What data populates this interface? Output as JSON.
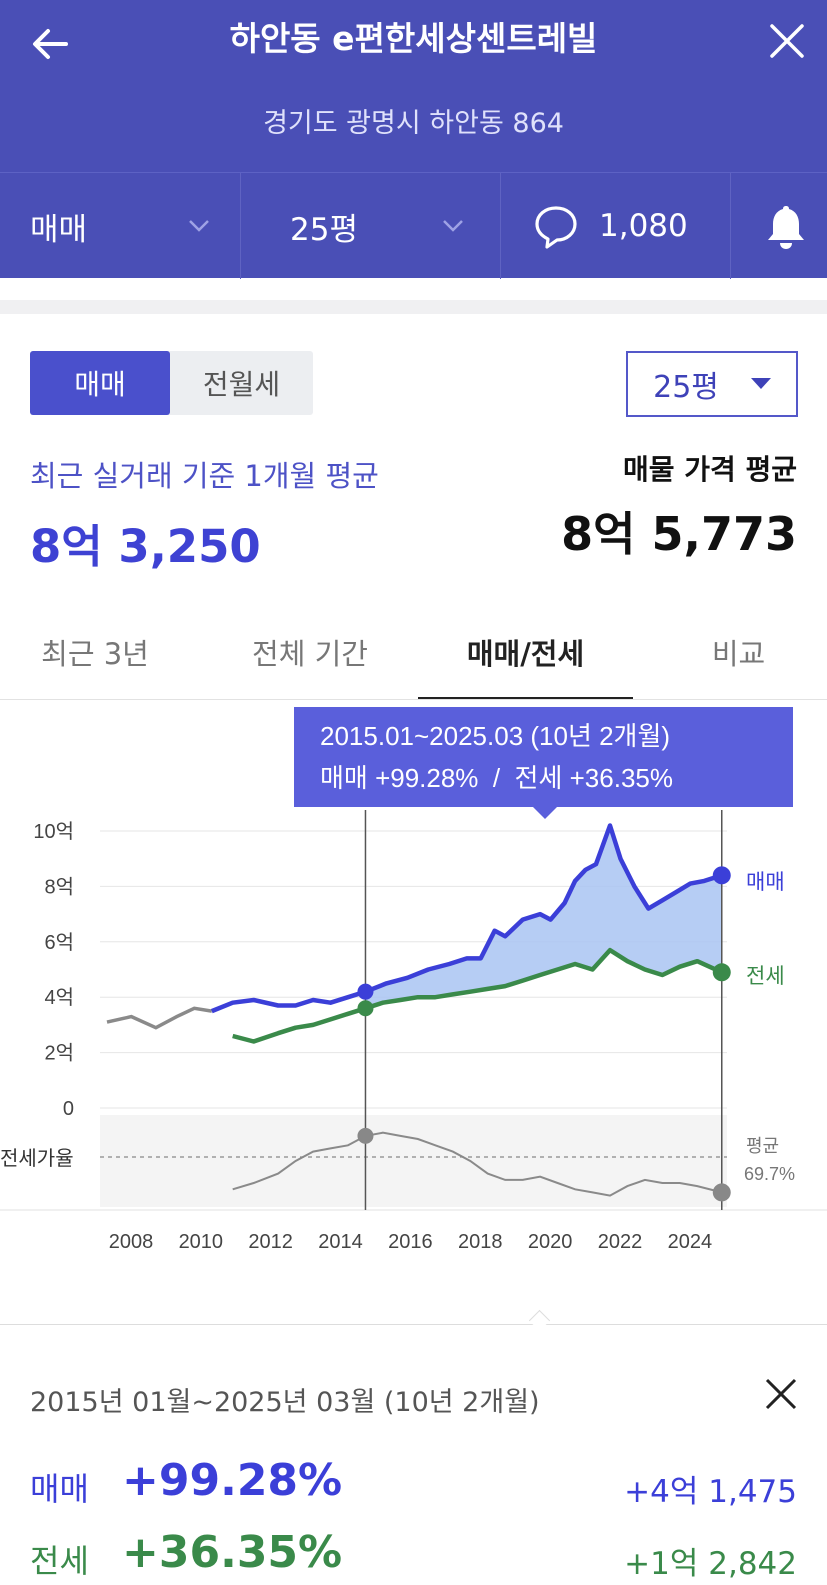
{
  "header": {
    "title": "하안동 e편한세상센트레빌",
    "address": "경기도 광명시 하안동 864"
  },
  "filter_bar": {
    "trade_type": "매매",
    "size": "25평",
    "comment_count": "1,080"
  },
  "segment": {
    "sale": "매매",
    "rent": "전월세"
  },
  "size_dropdown": "25평",
  "recent": {
    "label": "최근 실거래 기준 1개월 평균",
    "value": "8억 3,250"
  },
  "listing": {
    "label": "매물 가격 평균",
    "value": "8억 5,773"
  },
  "tabs": [
    "최근 3년",
    "전체 기간",
    "매매/전세",
    "비교"
  ],
  "active_tab": "매매/전세",
  "tooltip": {
    "period": "2015.01~2025.03 (10년 2개월)",
    "change": "매매 +99.28%  /  전세 +36.35%"
  },
  "chart_data": {
    "type": "line",
    "y_ticks": [
      "10억",
      "8억",
      "6억",
      "4억",
      "2억",
      "0"
    ],
    "ratio_label": "전세가율",
    "x_ticks": [
      "2008",
      "2010",
      "2012",
      "2014",
      "2016",
      "2018",
      "2020",
      "2022",
      "2024"
    ],
    "ylim": [
      0,
      10
    ],
    "y_unit": "억",
    "series": [
      {
        "name": "매매",
        "color": "#3b3fd8",
        "x": [
          2007.6,
          2008.3,
          2009.0,
          2009.6,
          2010.1,
          2010.6,
          2011.2,
          2011.8,
          2012.5,
          2013.0,
          2013.5,
          2014.0,
          2014.5,
          2015.0,
          2015.6,
          2016.2,
          2016.8,
          2017.4,
          2017.9,
          2018.3,
          2018.7,
          2019.0,
          2019.5,
          2020.0,
          2020.3,
          2020.7,
          2021.0,
          2021.3,
          2021.6,
          2021.8,
          2022.0,
          2022.3,
          2022.7,
          2023.1,
          2023.5,
          2023.9,
          2024.3,
          2024.7,
          2025.2
        ],
        "values": [
          3.1,
          3.3,
          2.9,
          3.3,
          3.6,
          3.5,
          3.8,
          3.9,
          3.7,
          3.7,
          3.9,
          3.8,
          4.0,
          4.2,
          4.5,
          4.7,
          5.0,
          5.2,
          5.4,
          5.4,
          6.4,
          6.2,
          6.8,
          7.0,
          6.8,
          7.4,
          8.2,
          8.6,
          8.8,
          9.5,
          10.2,
          9.0,
          8.0,
          7.2,
          7.5,
          7.8,
          8.1,
          8.2,
          8.4
        ]
      },
      {
        "name": "전세",
        "color": "#3a8a4a",
        "x": [
          2011.2,
          2011.8,
          2012.5,
          2013.0,
          2013.5,
          2014.0,
          2014.5,
          2015.0,
          2015.5,
          2016.0,
          2016.5,
          2017.0,
          2017.5,
          2018.0,
          2018.5,
          2019.0,
          2019.5,
          2020.0,
          2020.5,
          2021.0,
          2021.5,
          2022.0,
          2022.5,
          2023.0,
          2023.5,
          2024.0,
          2024.5,
          2025.2
        ],
        "values": [
          2.6,
          2.4,
          2.7,
          2.9,
          3.0,
          3.2,
          3.4,
          3.6,
          3.8,
          3.9,
          4.0,
          4.0,
          4.1,
          4.2,
          4.3,
          4.4,
          4.6,
          4.8,
          5.0,
          5.2,
          5.0,
          5.7,
          5.3,
          5.0,
          4.8,
          5.1,
          5.3,
          4.9
        ]
      }
    ],
    "ratio_series": {
      "name": "전세가율",
      "average_label": "평균",
      "average_value": "69.7%",
      "x": [
        2011.2,
        2011.8,
        2012.5,
        2013.0,
        2013.5,
        2014.0,
        2014.5,
        2015.0,
        2015.5,
        2016.0,
        2016.5,
        2017.0,
        2017.5,
        2018.0,
        2018.5,
        2019.0,
        2019.5,
        2020.0,
        2020.5,
        2021.0,
        2021.5,
        2022.0,
        2022.5,
        2023.0,
        2023.5,
        2024.0,
        2024.5,
        2025.2
      ],
      "values": [
        65,
        67,
        70,
        74,
        77,
        78,
        79,
        82,
        83,
        82,
        81,
        79,
        77,
        74,
        70,
        68,
        68,
        69,
        67,
        65,
        64,
        63,
        66,
        68,
        67,
        67,
        66,
        64
      ]
    },
    "selection": {
      "start": 2015.0,
      "end": 2025.2
    }
  },
  "summary": {
    "period": "2015년 01월~2025년 03월 (10년 2개월)",
    "rows": [
      {
        "label": "매매",
        "pct": "+99.28%",
        "amount": "+4억 1,475",
        "color": "#3b3fd8"
      },
      {
        "label": "전세",
        "pct": "+36.35%",
        "amount": "+1억 2,842",
        "color": "#3a8a4a"
      }
    ]
  }
}
